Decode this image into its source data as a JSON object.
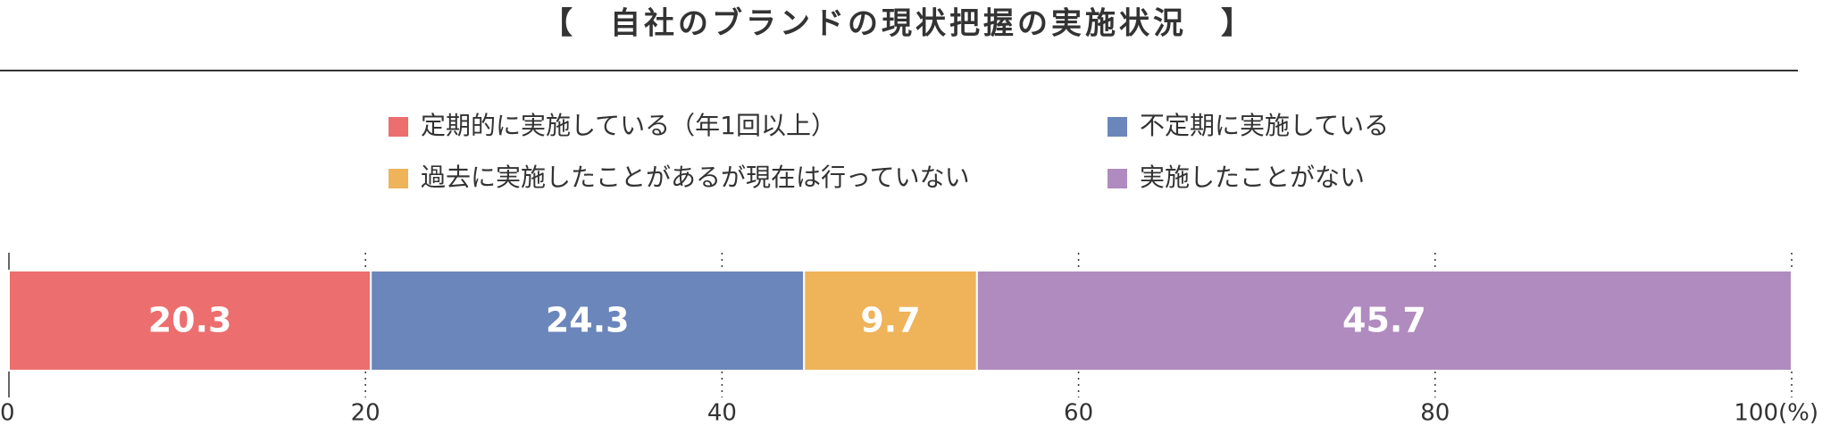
{
  "chart_data": {
    "type": "stacked_bar_horizontal",
    "title": "【　自社のブランドの現状把握の実施状況　】",
    "categories": [
      null
    ],
    "series": [
      {
        "name": "定期的に実施している（年1回以上）",
        "color": "#ec6e6e",
        "values": [
          20.3
        ]
      },
      {
        "name": "不定期に実施している",
        "color": "#6b86bb",
        "values": [
          24.3
        ]
      },
      {
        "name": "過去に実施したことがあるが現在は行っていない",
        "color": "#efb35a",
        "values": [
          9.7
        ]
      },
      {
        "name": "実施したことがない",
        "color": "#b08bbf",
        "values": [
          45.7
        ]
      }
    ],
    "xlim": [
      0,
      100
    ],
    "xticks": [
      0,
      20,
      40,
      60,
      80,
      {
        "value": 100,
        "label": "100(%)"
      }
    ],
    "legend": "top"
  }
}
